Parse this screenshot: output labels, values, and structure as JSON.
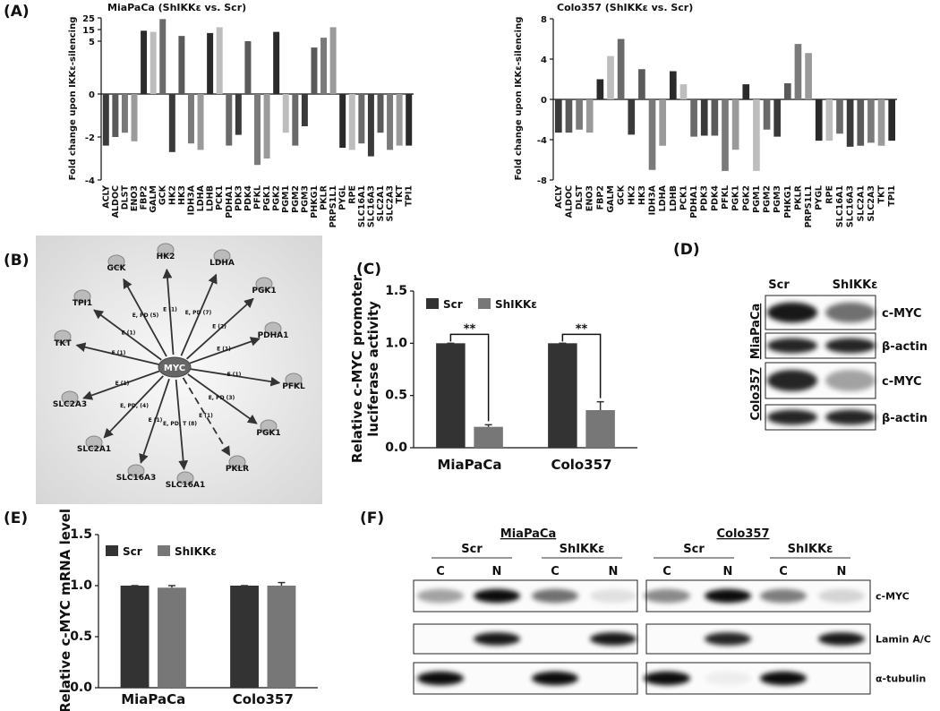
{
  "panel_labels": [
    "(A)",
    "(B)",
    "(C)",
    "(D)",
    "(E)",
    "(F)"
  ],
  "chart_data": [
    {
      "type": "bar",
      "title": "MiaPaCa (ShIKKε vs. Scr)",
      "ylabel": "Fold change upon IKKε-silencing",
      "categories": [
        "ACLY",
        "ALDOC",
        "DLST",
        "ENO3",
        "FBP2",
        "GALM",
        "GCK",
        "HK2",
        "HK3",
        "IDH3A",
        "LDHA",
        "LDHB",
        "PCK1",
        "PDHA1",
        "PDK3",
        "PDK4",
        "PFKL",
        "PGK1",
        "PGK2",
        "PGM1",
        "PGM2",
        "PGM3",
        "PHKG1",
        "PKLR",
        "PRPS1L1",
        "PYGL",
        "RPE",
        "SLC16A1",
        "SLC16A3",
        "SLC2A1",
        "SLC2A3",
        "TKT",
        "TPI1"
      ],
      "values": [
        -2.4,
        -2.0,
        -1.8,
        -2.2,
        14,
        13,
        24,
        -2.7,
        9.5,
        -2.3,
        -2.6,
        12,
        17,
        -2.4,
        -1.9,
        5,
        -3.3,
        -3.0,
        13,
        -1.8,
        -2.4,
        -1.5,
        4.4,
        8,
        17,
        -2.5,
        -2.6,
        -2.3,
        -2.9,
        -1.8,
        -2.6,
        -2.4,
        -2.4
      ],
      "colors": [
        "#3a3a3a",
        "#5a5a5a",
        "#7a7a7a",
        "#9a9a9a",
        "#2a2a2a",
        "#bdbdbd",
        "#6a6a6a"
      ],
      "ylim": [
        -4,
        25
      ],
      "yticks": [
        -4,
        -2,
        0,
        5,
        15,
        25
      ],
      "axis_break": true
    },
    {
      "type": "bar",
      "title": "Colo357 (ShIKKε vs. Scr)",
      "ylabel": "Fold change upon IKKε-silencing",
      "categories": [
        "ACLY",
        "ALDOC",
        "DLST",
        "ENO3",
        "FBP2",
        "GALM",
        "GCK",
        "HK2",
        "HK3",
        "IDH3A",
        "LDHA",
        "LDHB",
        "PCK1",
        "PDHA1",
        "PDK3",
        "PDK4",
        "PFKL",
        "PGK1",
        "PGK2",
        "PGM1",
        "PGM2",
        "PGM3",
        "PHKG1",
        "PKLR",
        "PRPS1L1",
        "PYGL",
        "RPE",
        "SLC16A1",
        "SLC16A3",
        "SLC2A1",
        "SLC2A3",
        "TKT",
        "TPI1"
      ],
      "values": [
        -3.3,
        -3.3,
        -3.0,
        -3.3,
        2.0,
        4.3,
        6.0,
        -3.5,
        3.0,
        -7.0,
        -4.6,
        2.8,
        1.5,
        -3.7,
        -3.6,
        -3.6,
        -7.1,
        -5.0,
        1.5,
        -7.1,
        -3.0,
        -3.7,
        1.6,
        5.5,
        4.6,
        -4.1,
        -4.1,
        -3.4,
        -4.7,
        -4.6,
        -4.3,
        -4.6,
        -4.1
      ],
      "colors": [
        "#3a3a3a",
        "#5a5a5a",
        "#7a7a7a",
        "#9a9a9a",
        "#2a2a2a",
        "#bdbdbd",
        "#6a6a6a"
      ],
      "ylim": [
        -8,
        8
      ],
      "yticks": [
        -8,
        -4,
        0,
        4,
        8
      ]
    },
    {
      "type": "bar",
      "ylabel": [
        "Relative c-MYC promoter",
        "luciferase activity"
      ],
      "categories": [
        "MiaPaCa",
        "Colo357"
      ],
      "series": [
        {
          "name": "Scr",
          "color": "#333333",
          "values": [
            1.0,
            1.0
          ],
          "errors": [
            0,
            0
          ]
        },
        {
          "name": "ShIKKε",
          "color": "#777777",
          "values": [
            0.2,
            0.36
          ],
          "errors": [
            0.02,
            0.08
          ]
        }
      ],
      "annotations": [
        "**",
        "**"
      ],
      "ylim": [
        0,
        1.5
      ],
      "yticks": [
        {
          "value": 0,
          "label": "0.0"
        },
        {
          "value": 0.5,
          "label": "0.5"
        },
        {
          "value": 1,
          "label": "1.0"
        },
        {
          "value": 1.5,
          "label": "1.5"
        }
      ]
    },
    {
      "type": "bar",
      "ylabel": [
        "Relative c-MYC mRNA level"
      ],
      "categories": [
        "MiaPaCa",
        "Colo357"
      ],
      "series": [
        {
          "name": "Scr",
          "color": "#333333",
          "values": [
            1.0,
            1.0
          ],
          "errors": [
            0,
            0
          ]
        },
        {
          "name": "ShIKKε",
          "color": "#777777",
          "values": [
            0.98,
            1.0
          ],
          "errors": [
            0.02,
            0.03
          ]
        }
      ],
      "ylim": [
        0,
        1.5
      ],
      "yticks": [
        {
          "value": 0,
          "label": "0.0"
        },
        {
          "value": 0.5,
          "label": "0.5"
        },
        {
          "value": 1,
          "label": "1.0"
        },
        {
          "value": 1.5,
          "label": "1.5"
        }
      ]
    }
  ],
  "network": {
    "center": "MYC",
    "nodes": [
      "TPI1",
      "GCK",
      "HK2",
      "LDHA",
      "PGK1",
      "PDHA1",
      "PFKL",
      "PGK1",
      "PKLR",
      "SLC16A1",
      "SLC16A3",
      "SLC2A1",
      "SLC2A3",
      "TKT"
    ],
    "edges": [
      "E (1)",
      "E, PD (5)",
      "E (1)",
      "E, PD (7)",
      "E (2)",
      "E (1)",
      "E (1)",
      "E, PD (3)",
      "E (1)",
      "E, PD, T (8)",
      "E (1)",
      "E, PD, (4)",
      "E (1)",
      "E (1)"
    ]
  },
  "blot_d": {
    "columns": [
      "Scr",
      "ShIKKε"
    ],
    "cell_lines": [
      "MiaPaCa",
      "Colo357"
    ],
    "rows": [
      "c-MYC",
      "β-actin",
      "c-MYC",
      "β-actin"
    ]
  },
  "blot_f": {
    "cell_lines": [
      "MiaPaCa",
      "Colo357"
    ],
    "conditions": [
      "Scr",
      "ShIKKε",
      "Scr",
      "ShIKKε"
    ],
    "lanes": [
      "C",
      "N",
      "C",
      "N",
      "C",
      "N",
      "C",
      "N"
    ],
    "rows": [
      "c-MYC",
      "Lamin A/C",
      "α-tubulin"
    ]
  }
}
